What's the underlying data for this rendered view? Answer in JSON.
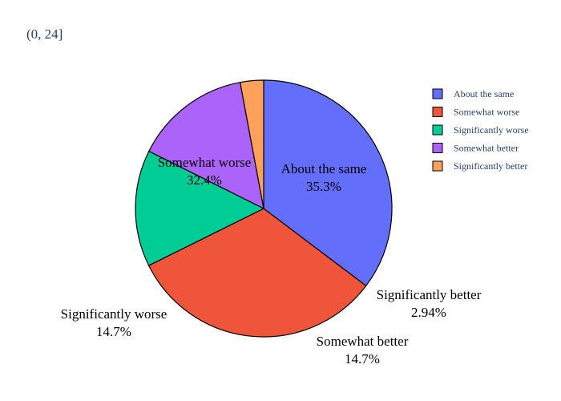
{
  "chart_data": {
    "type": "pie",
    "title": "(0, 24]",
    "labels": [
      "About the same",
      "Somewhat worse",
      "Significantly worse",
      "Somewhat better",
      "Significantly better"
    ],
    "percentages": [
      35.3,
      32.4,
      14.7,
      14.7,
      2.94
    ],
    "percent_labels": [
      "35.3%",
      "32.4%",
      "14.7%",
      "14.7%",
      "2.94%"
    ],
    "colors": [
      "#636efa",
      "#ef553b",
      "#00cc96",
      "#ab63fa",
      "#ffa15a"
    ],
    "direction": "clockwise",
    "start": "top",
    "legend": {
      "position": "right",
      "entries": [
        "About the same",
        "Somewhat worse",
        "Significantly worse",
        "Somewhat better",
        "Significantly better"
      ]
    }
  }
}
